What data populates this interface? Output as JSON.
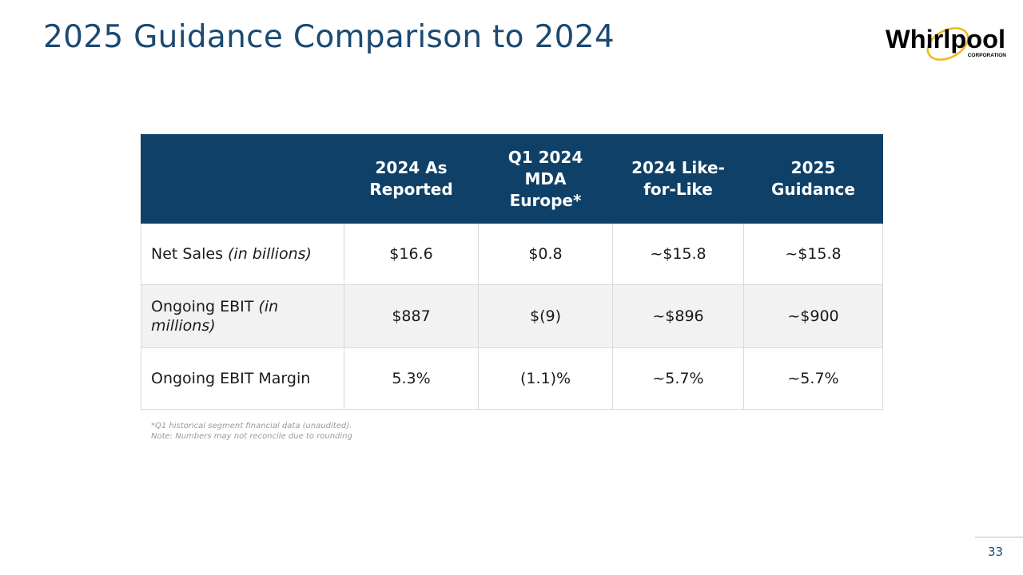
{
  "slide": {
    "title": "2025 Guidance Comparison to 2024",
    "page_number": "33"
  },
  "logo": {
    "text": "Whirlpool",
    "subtext": "CORPORATION",
    "ring_color": "#f2b61c",
    "text_color": "#000000"
  },
  "table": {
    "headers": [
      "",
      "2024 As Reported",
      "Q1 2024 MDA Europe*",
      "2024 Like-for-Like",
      "2025 Guidance"
    ],
    "rows": [
      {
        "label": "Net Sales",
        "label_note": "(in billions)",
        "values": [
          "$16.6",
          "$0.8",
          "~$15.8",
          "~$15.8"
        ]
      },
      {
        "label": "Ongoing EBIT",
        "label_note": "(in millions)",
        "values": [
          "$887",
          "$(9)",
          "~$896",
          "~$900"
        ]
      },
      {
        "label": "Ongoing EBIT Margin",
        "label_note": "",
        "values": [
          "5.3%",
          "(1.1)%",
          "~5.7%",
          "~5.7%"
        ]
      }
    ]
  },
  "footnotes": [
    "*Q1 historical segment financial data (unaudited).",
    "Note: Numbers may not reconcile due to rounding"
  ],
  "colors": {
    "header_bg": "#0f4168",
    "title": "#1b4a72",
    "alt_row": "#f2f2f2"
  }
}
